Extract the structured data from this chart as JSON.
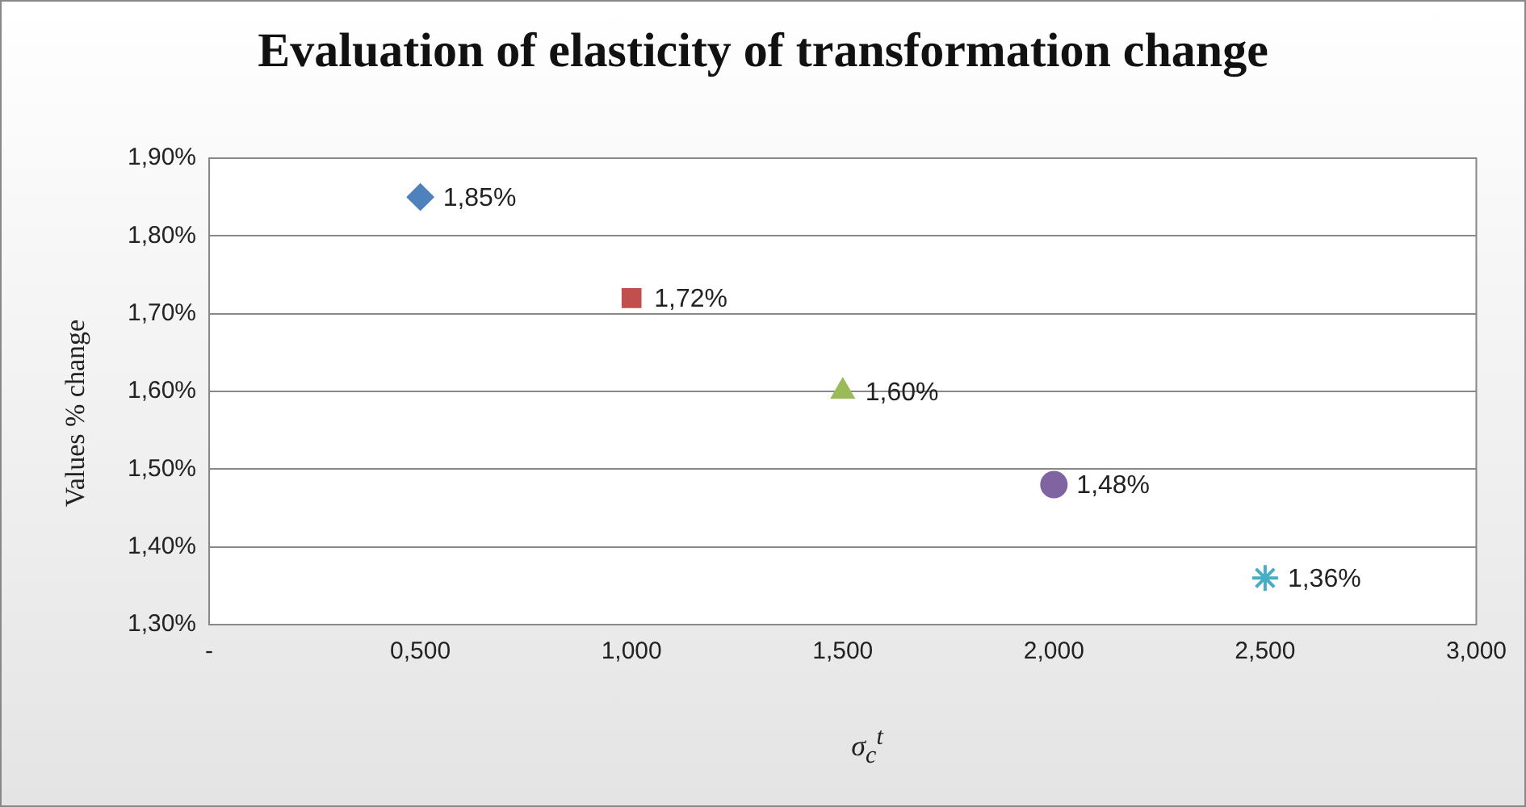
{
  "chart_data": {
    "type": "scatter",
    "title": "Evaluation of elasticity of transformation change",
    "xlabel": "σ$_{c}$$^{t}$",
    "ylabel": "Values % change",
    "series": [
      {
        "color": "#4f81bd",
        "marker": "diamond",
        "x": [
          0.5
        ],
        "values": [
          1.85
        ],
        "value_labels": [
          "1,85%"
        ]
      },
      {
        "color": "#c0504d",
        "marker": "square",
        "x": [
          1.0
        ],
        "values": [
          1.72
        ],
        "value_labels": [
          "1,72%"
        ]
      },
      {
        "color": "#9bbb59",
        "marker": "triangle",
        "x": [
          1.5
        ],
        "values": [
          1.6
        ],
        "value_labels": [
          "1,60%"
        ]
      },
      {
        "color": "#8064a2",
        "marker": "circle",
        "x": [
          2.0
        ],
        "values": [
          1.48
        ],
        "value_labels": [
          "1,48%"
        ]
      },
      {
        "color": "#4bacc6",
        "marker": "cross",
        "x": [
          2.5
        ],
        "values": [
          1.36
        ],
        "value_labels": [
          "1,36%"
        ]
      }
    ],
    "xlim": [
      0,
      3
    ],
    "xticks": [
      {
        "value": 0,
        "label": "-"
      },
      {
        "value": 0.5,
        "label": "0,500"
      },
      {
        "value": 1,
        "label": "1,000"
      },
      {
        "value": 1.5,
        "label": "1,500"
      },
      {
        "value": 2,
        "label": "2,000"
      },
      {
        "value": 2.5,
        "label": "2,500"
      },
      {
        "value": 3,
        "label": "3,000"
      }
    ],
    "ylim": [
      1.3,
      1.9
    ],
    "yticks": [
      {
        "value": 1.3,
        "label": "1,30%"
      },
      {
        "value": 1.4,
        "label": "1,40%"
      },
      {
        "value": 1.5,
        "label": "1,50%"
      },
      {
        "value": 1.6,
        "label": "1,60%"
      },
      {
        "value": 1.7,
        "label": "1,70%"
      },
      {
        "value": 1.8,
        "label": "1,80%"
      },
      {
        "value": 1.9,
        "label": "1,90%"
      }
    ],
    "grid": "y",
    "legend": false
  }
}
